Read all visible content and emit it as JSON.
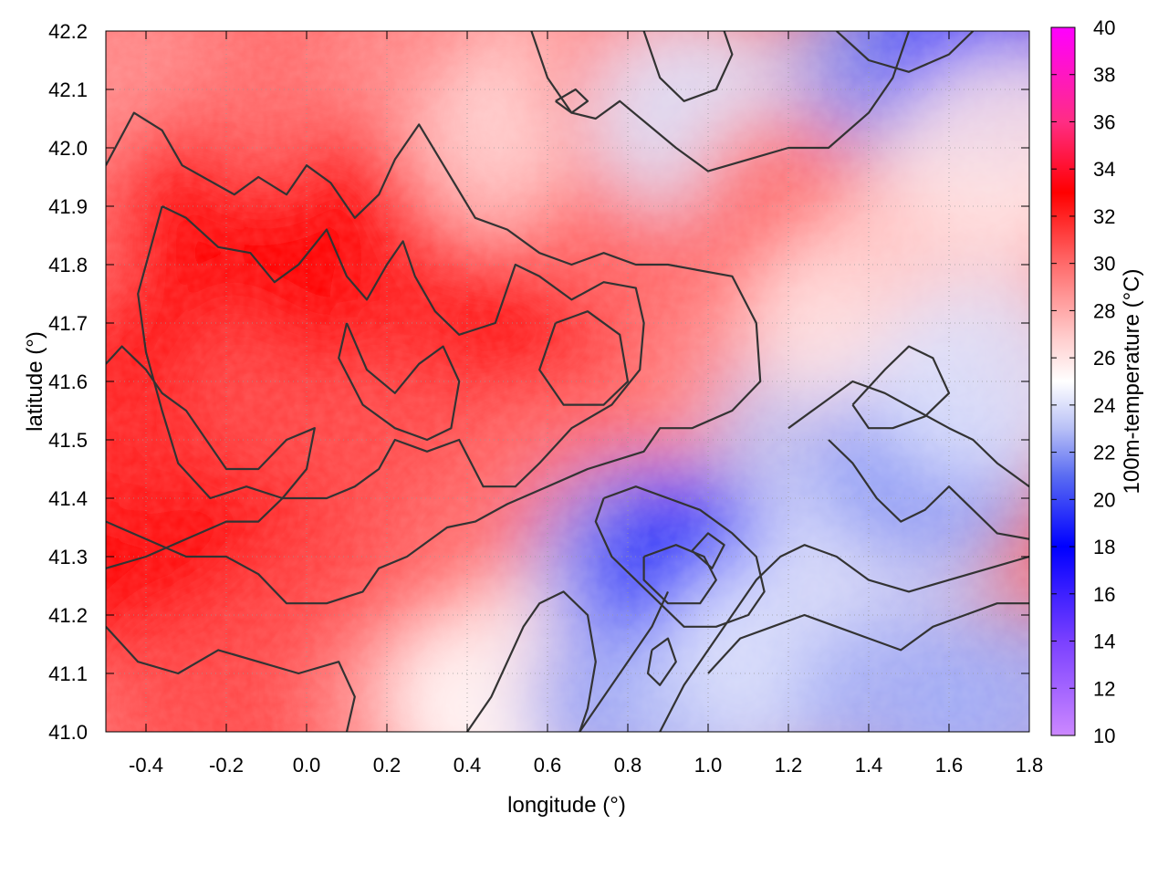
{
  "chart_data": {
    "type": "heatmap",
    "title": "",
    "xlabel": "longitude (°)",
    "ylabel": "latitude (°)",
    "colorbar_label": "100m-temperature (°C)",
    "xlim": [
      -0.5,
      1.8
    ],
    "ylim": [
      41.0,
      42.2
    ],
    "clim": [
      10,
      40
    ],
    "x_ticks": [
      "-0.4",
      "-0.2",
      "0.0",
      "0.2",
      "0.4",
      "0.6",
      "0.8",
      "1.0",
      "1.2",
      "1.4",
      "1.6",
      "1.8"
    ],
    "x_tick_values": [
      -0.4,
      -0.2,
      0.0,
      0.2,
      0.4,
      0.6,
      0.8,
      1.0,
      1.2,
      1.4,
      1.6,
      1.8
    ],
    "y_ticks": [
      "41.0",
      "41.1",
      "41.2",
      "41.3",
      "41.4",
      "41.5",
      "41.6",
      "41.7",
      "41.8",
      "41.9",
      "42.0",
      "42.1",
      "42.2"
    ],
    "y_tick_values": [
      41.0,
      41.1,
      41.2,
      41.3,
      41.4,
      41.5,
      41.6,
      41.7,
      41.8,
      41.9,
      42.0,
      42.1,
      42.2
    ],
    "colorbar_ticks": [
      "10",
      "12",
      "14",
      "16",
      "18",
      "20",
      "22",
      "24",
      "26",
      "28",
      "30",
      "32",
      "34",
      "36",
      "38",
      "40"
    ],
    "colorbar_tick_values": [
      10,
      12,
      14,
      16,
      18,
      20,
      22,
      24,
      26,
      28,
      30,
      32,
      34,
      36,
      38,
      40
    ],
    "colormap": [
      {
        "value": 10,
        "color": "#cc88ff"
      },
      {
        "value": 14,
        "color": "#7a40ff"
      },
      {
        "value": 18,
        "color": "#0000ff"
      },
      {
        "value": 21,
        "color": "#5a6cf2"
      },
      {
        "value": 23,
        "color": "#b8c0f6"
      },
      {
        "value": 25,
        "color": "#ffffff"
      },
      {
        "value": 27,
        "color": "#ffc8c8"
      },
      {
        "value": 30,
        "color": "#ff6a6a"
      },
      {
        "value": 33,
        "color": "#ff0000"
      },
      {
        "value": 36,
        "color": "#ff2d84"
      },
      {
        "value": 40,
        "color": "#ff00ff"
      }
    ],
    "grid": true,
    "contour_color": "#333333",
    "field_cells": [
      {
        "lon": -0.45,
        "lat": 41.6,
        "t": 32
      },
      {
        "lon": -0.45,
        "lat": 41.3,
        "t": 33
      },
      {
        "lon": -0.45,
        "lat": 41.9,
        "t": 30
      },
      {
        "lon": -0.4,
        "lat": 42.1,
        "t": 29
      },
      {
        "lon": -0.2,
        "lat": 41.9,
        "t": 33
      },
      {
        "lon": -0.2,
        "lat": 41.7,
        "t": 33
      },
      {
        "lon": -0.2,
        "lat": 41.45,
        "t": 32
      },
      {
        "lon": -0.2,
        "lat": 41.25,
        "t": 33
      },
      {
        "lon": -0.2,
        "lat": 41.05,
        "t": 31
      },
      {
        "lon": 0.0,
        "lat": 42.1,
        "t": 30
      },
      {
        "lon": 0.0,
        "lat": 41.6,
        "t": 31
      },
      {
        "lon": 0.1,
        "lat": 41.8,
        "t": 33
      },
      {
        "lon": 0.1,
        "lat": 41.2,
        "t": 31
      },
      {
        "lon": 0.25,
        "lat": 41.9,
        "t": 33
      },
      {
        "lon": 0.3,
        "lat": 41.5,
        "t": 31
      },
      {
        "lon": 0.3,
        "lat": 41.05,
        "t": 29
      },
      {
        "lon": 0.35,
        "lat": 42.15,
        "t": 29
      },
      {
        "lon": 0.45,
        "lat": 41.75,
        "t": 32
      },
      {
        "lon": 0.5,
        "lat": 41.3,
        "t": 30
      },
      {
        "lon": 0.5,
        "lat": 41.05,
        "t": 25
      },
      {
        "lon": 0.55,
        "lat": 42.0,
        "t": 27
      },
      {
        "lon": 0.7,
        "lat": 41.7,
        "t": 33
      },
      {
        "lon": 0.7,
        "lat": 41.45,
        "t": 30
      },
      {
        "lon": 0.7,
        "lat": 41.15,
        "t": 26
      },
      {
        "lon": 0.72,
        "lat": 42.1,
        "t": 26
      },
      {
        "lon": 0.82,
        "lat": 42.12,
        "t": 29
      },
      {
        "lon": 0.85,
        "lat": 41.85,
        "t": 30
      },
      {
        "lon": 0.85,
        "lat": 41.3,
        "t": 22
      },
      {
        "lon": 0.85,
        "lat": 41.05,
        "t": 22
      },
      {
        "lon": 1.0,
        "lat": 41.28,
        "t": 19
      },
      {
        "lon": 1.0,
        "lat": 42.05,
        "t": 24
      },
      {
        "lon": 1.05,
        "lat": 41.05,
        "t": 23
      },
      {
        "lon": 1.1,
        "lat": 41.6,
        "t": 29
      },
      {
        "lon": 1.2,
        "lat": 41.15,
        "t": 24
      },
      {
        "lon": 1.25,
        "lat": 41.9,
        "t": 30
      },
      {
        "lon": 1.3,
        "lat": 41.5,
        "t": 23
      },
      {
        "lon": 1.4,
        "lat": 41.7,
        "t": 26
      },
      {
        "lon": 1.45,
        "lat": 41.35,
        "t": 24
      },
      {
        "lon": 1.5,
        "lat": 42.15,
        "t": 22
      },
      {
        "lon": 1.5,
        "lat": 41.05,
        "t": 22.5
      },
      {
        "lon": 1.55,
        "lat": 41.45,
        "t": 22
      },
      {
        "lon": 1.6,
        "lat": 41.85,
        "t": 27
      },
      {
        "lon": 1.7,
        "lat": 42.15,
        "t": 19
      },
      {
        "lon": 1.7,
        "lat": 41.6,
        "t": 24
      },
      {
        "lon": 1.75,
        "lat": 41.05,
        "t": 22.5
      },
      {
        "lon": 1.75,
        "lat": 42.0,
        "t": 26
      }
    ],
    "contours": [
      [
        [
          -0.5,
          41.97
        ],
        [
          -0.43,
          42.06
        ],
        [
          -0.36,
          42.03
        ],
        [
          -0.31,
          41.97
        ],
        [
          -0.18,
          41.92
        ],
        [
          -0.12,
          41.95
        ],
        [
          -0.05,
          41.92
        ],
        [
          0.0,
          41.97
        ],
        [
          0.06,
          41.94
        ],
        [
          0.12,
          41.88
        ],
        [
          0.18,
          41.92
        ],
        [
          0.22,
          41.98
        ],
        [
          0.28,
          42.04
        ],
        [
          0.35,
          41.96
        ],
        [
          0.42,
          41.88
        ],
        [
          0.5,
          41.86
        ],
        [
          0.58,
          41.82
        ],
        [
          0.66,
          41.8
        ],
        [
          0.74,
          41.82
        ],
        [
          0.82,
          41.8
        ],
        [
          0.9,
          41.8
        ],
        [
          1.06,
          41.78
        ],
        [
          1.12,
          41.7
        ],
        [
          1.13,
          41.6
        ],
        [
          1.06,
          41.55
        ],
        [
          0.96,
          41.52
        ],
        [
          0.88,
          41.52
        ],
        [
          0.84,
          41.48
        ],
        [
          0.7,
          41.45
        ],
        [
          0.6,
          41.42
        ],
        [
          0.5,
          41.39
        ],
        [
          0.42,
          41.36
        ],
        [
          0.35,
          41.35
        ],
        [
          0.25,
          41.3
        ],
        [
          0.18,
          41.28
        ],
        [
          0.14,
          41.24
        ],
        [
          0.05,
          41.22
        ],
        [
          -0.05,
          41.22
        ],
        [
          -0.12,
          41.27
        ],
        [
          -0.2,
          41.3
        ],
        [
          -0.3,
          41.3
        ],
        [
          -0.4,
          41.33
        ],
        [
          -0.5,
          41.36
        ]
      ],
      [
        [
          -0.36,
          41.9
        ],
        [
          -0.3,
          41.88
        ],
        [
          -0.22,
          41.83
        ],
        [
          -0.14,
          41.82
        ],
        [
          -0.08,
          41.77
        ],
        [
          -0.02,
          41.8
        ],
        [
          0.05,
          41.86
        ],
        [
          0.1,
          41.78
        ],
        [
          0.15,
          41.74
        ],
        [
          0.2,
          41.8
        ],
        [
          0.24,
          41.84
        ],
        [
          0.27,
          41.78
        ],
        [
          0.32,
          41.72
        ],
        [
          0.38,
          41.68
        ],
        [
          0.47,
          41.7
        ],
        [
          0.52,
          41.8
        ],
        [
          0.58,
          41.78
        ],
        [
          0.66,
          41.74
        ],
        [
          0.74,
          41.77
        ],
        [
          0.82,
          41.76
        ],
        [
          0.84,
          41.7
        ],
        [
          0.83,
          41.62
        ],
        [
          0.76,
          41.56
        ],
        [
          0.66,
          41.52
        ],
        [
          0.58,
          41.46
        ],
        [
          0.52,
          41.42
        ],
        [
          0.44,
          41.42
        ],
        [
          0.38,
          41.5
        ],
        [
          0.3,
          41.48
        ],
        [
          0.22,
          41.5
        ],
        [
          0.18,
          41.45
        ],
        [
          0.12,
          41.42
        ],
        [
          0.05,
          41.4
        ],
        [
          -0.06,
          41.4
        ],
        [
          -0.15,
          41.42
        ],
        [
          -0.24,
          41.4
        ],
        [
          -0.32,
          41.46
        ],
        [
          -0.36,
          41.55
        ],
        [
          -0.4,
          41.65
        ],
        [
          -0.42,
          41.75
        ],
        [
          -0.36,
          41.9
        ]
      ],
      [
        [
          0.1,
          41.7
        ],
        [
          0.15,
          41.62
        ],
        [
          0.22,
          41.58
        ],
        [
          0.28,
          41.63
        ],
        [
          0.34,
          41.66
        ],
        [
          0.38,
          41.6
        ],
        [
          0.36,
          41.52
        ],
        [
          0.3,
          41.5
        ],
        [
          0.22,
          41.52
        ],
        [
          0.14,
          41.56
        ],
        [
          0.08,
          41.64
        ],
        [
          0.1,
          41.7
        ]
      ],
      [
        [
          0.62,
          41.7
        ],
        [
          0.7,
          41.72
        ],
        [
          0.78,
          41.68
        ],
        [
          0.8,
          41.6
        ],
        [
          0.74,
          41.56
        ],
        [
          0.64,
          41.56
        ],
        [
          0.58,
          41.62
        ],
        [
          0.62,
          41.7
        ]
      ],
      [
        [
          -0.5,
          41.63
        ],
        [
          -0.46,
          41.66
        ],
        [
          -0.4,
          41.62
        ],
        [
          -0.36,
          41.58
        ],
        [
          -0.3,
          41.55
        ],
        [
          -0.25,
          41.5
        ],
        [
          -0.2,
          41.45
        ],
        [
          -0.12,
          41.45
        ],
        [
          -0.05,
          41.5
        ],
        [
          0.02,
          41.52
        ],
        [
          0.0,
          41.45
        ],
        [
          -0.06,
          41.4
        ],
        [
          -0.12,
          41.36
        ],
        [
          -0.2,
          41.36
        ],
        [
          -0.3,
          41.33
        ],
        [
          -0.4,
          41.3
        ],
        [
          -0.5,
          41.28
        ]
      ],
      [
        [
          -0.5,
          41.18
        ],
        [
          -0.42,
          41.12
        ],
        [
          -0.32,
          41.1
        ],
        [
          -0.22,
          41.14
        ],
        [
          -0.12,
          41.12
        ],
        [
          -0.02,
          41.1
        ],
        [
          0.08,
          41.12
        ],
        [
          0.12,
          41.06
        ],
        [
          0.1,
          41.0
        ]
      ],
      [
        [
          0.56,
          42.2
        ],
        [
          0.6,
          42.12
        ],
        [
          0.66,
          42.06
        ],
        [
          0.72,
          42.05
        ],
        [
          0.78,
          42.08
        ],
        [
          0.85,
          42.04
        ],
        [
          0.92,
          42.0
        ],
        [
          1.0,
          41.96
        ],
        [
          1.1,
          41.98
        ],
        [
          1.2,
          42.0
        ],
        [
          1.3,
          42.0
        ],
        [
          1.4,
          42.06
        ],
        [
          1.46,
          42.12
        ],
        [
          1.5,
          42.2
        ]
      ],
      [
        [
          0.84,
          42.2
        ],
        [
          0.88,
          42.12
        ],
        [
          0.94,
          42.08
        ],
        [
          1.02,
          42.1
        ],
        [
          1.06,
          42.16
        ],
        [
          1.04,
          42.2
        ]
      ],
      [
        [
          1.32,
          42.2
        ],
        [
          1.4,
          42.15
        ],
        [
          1.5,
          42.13
        ],
        [
          1.6,
          42.16
        ],
        [
          1.66,
          42.2
        ]
      ],
      [
        [
          0.62,
          42.08
        ],
        [
          0.66,
          42.06
        ],
        [
          0.7,
          42.08
        ],
        [
          0.67,
          42.1
        ],
        [
          0.62,
          42.08
        ]
      ],
      [
        [
          1.2,
          41.52
        ],
        [
          1.28,
          41.56
        ],
        [
          1.36,
          41.6
        ],
        [
          1.44,
          41.58
        ],
        [
          1.52,
          41.55
        ],
        [
          1.6,
          41.52
        ],
        [
          1.66,
          41.5
        ],
        [
          1.72,
          41.46
        ],
        [
          1.8,
          41.42
        ]
      ],
      [
        [
          0.74,
          41.4
        ],
        [
          0.82,
          41.42
        ],
        [
          0.9,
          41.4
        ],
        [
          0.98,
          41.38
        ],
        [
          1.06,
          41.34
        ],
        [
          1.12,
          41.3
        ],
        [
          1.14,
          41.24
        ],
        [
          1.1,
          41.2
        ],
        [
          1.02,
          41.18
        ],
        [
          0.94,
          41.18
        ],
        [
          0.88,
          41.22
        ],
        [
          0.82,
          41.26
        ],
        [
          0.76,
          41.3
        ],
        [
          0.72,
          41.36
        ],
        [
          0.74,
          41.4
        ]
      ],
      [
        [
          0.84,
          41.3
        ],
        [
          0.92,
          41.32
        ],
        [
          0.99,
          41.3
        ],
        [
          1.02,
          41.26
        ],
        [
          0.98,
          41.22
        ],
        [
          0.9,
          41.22
        ],
        [
          0.84,
          41.26
        ],
        [
          0.84,
          41.3
        ]
      ],
      [
        [
          0.96,
          41.31
        ],
        [
          1.0,
          41.34
        ],
        [
          1.04,
          41.32
        ],
        [
          1.01,
          41.28
        ],
        [
          0.96,
          41.31
        ]
      ],
      [
        [
          0.86,
          41.14
        ],
        [
          0.9,
          41.16
        ],
        [
          0.92,
          41.12
        ],
        [
          0.88,
          41.08
        ],
        [
          0.85,
          41.1
        ],
        [
          0.86,
          41.14
        ]
      ],
      [
        [
          1.0,
          41.1
        ],
        [
          1.08,
          41.16
        ],
        [
          1.16,
          41.18
        ],
        [
          1.24,
          41.2
        ],
        [
          1.32,
          41.18
        ],
        [
          1.4,
          41.16
        ],
        [
          1.48,
          41.14
        ],
        [
          1.56,
          41.18
        ],
        [
          1.64,
          41.2
        ],
        [
          1.72,
          41.22
        ],
        [
          1.8,
          41.22
        ]
      ],
      [
        [
          0.88,
          41.0
        ],
        [
          0.94,
          41.08
        ],
        [
          1.0,
          41.14
        ],
        [
          1.06,
          41.2
        ],
        [
          1.12,
          41.26
        ],
        [
          1.18,
          41.3
        ],
        [
          1.24,
          41.32
        ],
        [
          1.32,
          41.3
        ],
        [
          1.4,
          41.26
        ],
        [
          1.5,
          41.24
        ],
        [
          1.6,
          41.26
        ],
        [
          1.7,
          41.28
        ],
        [
          1.8,
          41.3
        ]
      ],
      [
        [
          0.68,
          41.0
        ],
        [
          0.74,
          41.06
        ],
        [
          0.8,
          41.12
        ],
        [
          0.86,
          41.18
        ],
        [
          0.9,
          41.24
        ]
      ],
      [
        [
          0.4,
          41.0
        ],
        [
          0.46,
          41.06
        ],
        [
          0.5,
          41.12
        ],
        [
          0.54,
          41.18
        ],
        [
          0.58,
          41.22
        ],
        [
          0.64,
          41.24
        ],
        [
          0.7,
          41.2
        ],
        [
          0.72,
          41.12
        ],
        [
          0.7,
          41.04
        ],
        [
          0.68,
          41.0
        ]
      ],
      [
        [
          1.3,
          41.5
        ],
        [
          1.36,
          41.46
        ],
        [
          1.42,
          41.4
        ],
        [
          1.48,
          41.36
        ],
        [
          1.54,
          41.38
        ],
        [
          1.6,
          41.42
        ],
        [
          1.66,
          41.38
        ],
        [
          1.72,
          41.34
        ],
        [
          1.8,
          41.33
        ]
      ],
      [
        [
          1.36,
          41.56
        ],
        [
          1.44,
          41.62
        ],
        [
          1.5,
          41.66
        ],
        [
          1.56,
          41.64
        ],
        [
          1.6,
          41.58
        ],
        [
          1.54,
          41.54
        ],
        [
          1.46,
          41.52
        ],
        [
          1.4,
          41.52
        ],
        [
          1.36,
          41.56
        ]
      ]
    ]
  }
}
